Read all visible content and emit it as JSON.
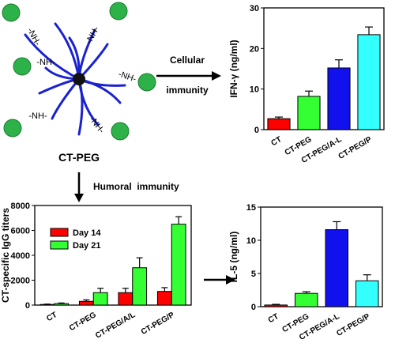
{
  "molecule": {
    "label": "CT-PEG",
    "linker_text": "-NH-",
    "node_color": "#2db24a",
    "core_color": "#111111",
    "arm_color": "#1a22d0"
  },
  "arrows": {
    "cellular_line1": "Cellular",
    "cellular_line2": "immunity",
    "humoral": "Humoral  immunity"
  },
  "chart_data": [
    {
      "id": "ifn",
      "type": "bar",
      "categories": [
        "CT",
        "CT-PEG",
        "CT-PEG/A-L",
        "CT-PEG/P"
      ],
      "values": [
        2.7,
        8.2,
        15.2,
        23.4
      ],
      "errors": [
        0.4,
        1.3,
        2.0,
        1.9
      ],
      "colors": [
        "#ff0000",
        "#33ff33",
        "#1111ee",
        "#33ffff"
      ],
      "ylabel": "IFN-γ (ng/ml)",
      "ylim": [
        0,
        30
      ],
      "yticks": [
        0,
        10,
        20,
        30
      ],
      "grid": false
    },
    {
      "id": "igg",
      "type": "bar",
      "categories": [
        "CT",
        "CT-PEG",
        "CT-PEG/A/L",
        "CT-PEG/P"
      ],
      "series": [
        {
          "name": "Day 14",
          "color": "#ff0000",
          "values": [
            50,
            300,
            1000,
            1100
          ],
          "errors": [
            30,
            120,
            350,
            300
          ]
        },
        {
          "name": "Day 21",
          "color": "#33ff33",
          "values": [
            120,
            1000,
            3000,
            6500
          ],
          "errors": [
            50,
            350,
            800,
            600
          ]
        }
      ],
      "ylabel": "CT-specific IgG titers",
      "ylim": [
        0,
        8000
      ],
      "yticks": [
        0,
        2000,
        4000,
        6000,
        8000
      ],
      "legend": "top-left",
      "grid": false
    },
    {
      "id": "il5",
      "type": "bar",
      "categories": [
        "CT",
        "CT-PEG",
        "CT-PEG/A-L",
        "CT-PEG/P"
      ],
      "values": [
        0.25,
        2.0,
        11.6,
        3.9
      ],
      "errors": [
        0.1,
        0.25,
        1.2,
        0.9
      ],
      "colors": [
        "#ff0000",
        "#33ff33",
        "#1111ee",
        "#33ffff"
      ],
      "ylabel": "IL-5  (ng/ml)",
      "ylim": [
        0,
        15
      ],
      "yticks": [
        0,
        5,
        10,
        15
      ],
      "grid": false
    }
  ]
}
